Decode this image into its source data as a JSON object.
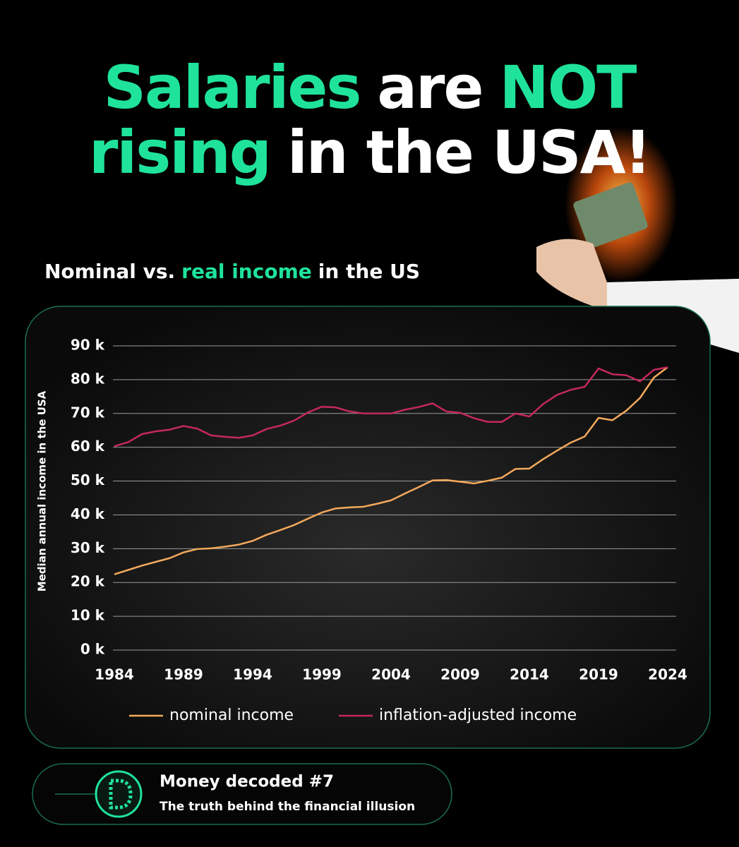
{
  "header": {
    "title_lines": [
      [
        {
          "text": "Salaries",
          "color": "#1fe39b"
        },
        {
          "text": "are",
          "color": "#ffffff"
        },
        {
          "text": "NOT",
          "color": "#1fe39b"
        }
      ],
      [
        {
          "text": "rising",
          "color": "#1fe39b"
        },
        {
          "text": "in the USA!",
          "color": "#ffffff"
        }
      ]
    ],
    "subtitle": [
      {
        "text": "Nominal vs.",
        "color": "#ffffff"
      },
      {
        "text": "real income",
        "color": "#1fe39b"
      },
      {
        "text": "in the US",
        "color": "#ffffff"
      }
    ]
  },
  "chart_data": {
    "type": "line",
    "ylabel": "Median annual income in the USA",
    "x": [
      1984,
      1985,
      1986,
      1987,
      1988,
      1989,
      1990,
      1991,
      1992,
      1993,
      1994,
      1995,
      1996,
      1997,
      1998,
      1999,
      2000,
      2001,
      2002,
      2003,
      2004,
      2005,
      2006,
      2007,
      2008,
      2009,
      2010,
      2011,
      2012,
      2013,
      2014,
      2015,
      2016,
      2017,
      2018,
      2019,
      2020,
      2021,
      2022,
      2023,
      2024
    ],
    "series": [
      {
        "name": "nominal income",
        "color": "#f4a95c",
        "values": [
          22400,
          23700,
          25000,
          26100,
          27200,
          28900,
          29900,
          30100,
          30600,
          31200,
          32300,
          34100,
          35500,
          37000,
          38900,
          40700,
          41900,
          42200,
          42400,
          43300,
          44300,
          46300,
          48200,
          50200,
          50300,
          49800,
          49300,
          50100,
          51000,
          53600,
          53700,
          56500,
          59000,
          61400,
          63200,
          68700,
          68000,
          70800,
          74600,
          80600,
          83700
        ]
      },
      {
        "name": "inflation-adjusted income",
        "color": "#c4285c",
        "values": [
          60300,
          61500,
          63900,
          64700,
          65200,
          66300,
          65500,
          63500,
          63100,
          62800,
          63500,
          65400,
          66400,
          67900,
          70300,
          72000,
          71800,
          70600,
          70000,
          70000,
          70000,
          71100,
          71900,
          73000,
          70600,
          70200,
          68600,
          67500,
          67500,
          70000,
          69100,
          72800,
          75500,
          77000,
          77900,
          83300,
          81600,
          81300,
          79500,
          82900,
          83700
        ]
      }
    ],
    "xlim": [
      1984,
      2024
    ],
    "xticks": [
      1984,
      1989,
      1994,
      1999,
      2004,
      2009,
      2014,
      2019,
      2024
    ],
    "ylim": [
      0,
      90000
    ],
    "yticks": [
      {
        "value": 0,
        "label": "0 k"
      },
      {
        "value": 10000,
        "label": "10 k"
      },
      {
        "value": 20000,
        "label": "20 k"
      },
      {
        "value": 30000,
        "label": "30 k"
      },
      {
        "value": 40000,
        "label": "40 k"
      },
      {
        "value": 50000,
        "label": "50 k"
      },
      {
        "value": 60000,
        "label": "60 k"
      },
      {
        "value": 70000,
        "label": "70 k"
      },
      {
        "value": 80000,
        "label": "80 k"
      },
      {
        "value": 90000,
        "label": "90 k"
      }
    ],
    "grid": true,
    "legend": "bottom"
  },
  "footer": {
    "title": "Money decoded #7",
    "subtitle": "The truth behind the financial illusion"
  }
}
